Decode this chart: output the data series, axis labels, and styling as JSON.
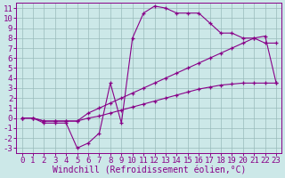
{
  "xlabel": "Windchill (Refroidissement éolien,°C)",
  "xlim": [
    -0.5,
    23.5
  ],
  "ylim": [
    -3.5,
    11.5
  ],
  "xticks": [
    0,
    1,
    2,
    3,
    4,
    5,
    6,
    7,
    8,
    9,
    10,
    11,
    12,
    13,
    14,
    15,
    16,
    17,
    18,
    19,
    20,
    21,
    22,
    23
  ],
  "yticks": [
    -3,
    -2,
    -1,
    0,
    1,
    2,
    3,
    4,
    5,
    6,
    7,
    8,
    9,
    10,
    11
  ],
  "bg_color": "#cce8e8",
  "line_color": "#880088",
  "grid_color": "#99bbbb",
  "line1_x": [
    0,
    1,
    2,
    3,
    4,
    5,
    6,
    7,
    8,
    9,
    10,
    11,
    12,
    13,
    14,
    15,
    16,
    17,
    18,
    19,
    20,
    21,
    22,
    23
  ],
  "line1_y": [
    0,
    0,
    -0.5,
    -0.5,
    -0.5,
    -3.0,
    -2.5,
    -1.5,
    3.5,
    -0.5,
    8.0,
    10.5,
    11.2,
    11.0,
    10.5,
    10.5,
    10.5,
    9.5,
    8.5,
    8.5,
    8.0,
    8.0,
    7.5,
    7.5
  ],
  "line2_x": [
    0,
    1,
    2,
    3,
    4,
    5,
    6,
    7,
    8,
    9,
    10,
    11,
    12,
    13,
    14,
    15,
    16,
    17,
    18,
    19,
    20,
    21,
    22,
    23
  ],
  "line2_y": [
    0,
    0,
    -0.3,
    -0.3,
    -0.3,
    -0.3,
    0.5,
    1.0,
    1.5,
    2.0,
    2.5,
    3.0,
    3.5,
    4.0,
    4.5,
    5.0,
    5.5,
    6.0,
    6.5,
    7.0,
    7.5,
    8.0,
    8.2,
    3.5
  ],
  "line3_x": [
    0,
    1,
    2,
    3,
    4,
    5,
    6,
    7,
    8,
    9,
    10,
    11,
    12,
    13,
    14,
    15,
    16,
    17,
    18,
    19,
    20,
    21,
    22,
    23
  ],
  "line3_y": [
    0,
    0,
    -0.3,
    -0.3,
    -0.3,
    -0.3,
    0.0,
    0.2,
    0.5,
    0.8,
    1.1,
    1.4,
    1.7,
    2.0,
    2.3,
    2.6,
    2.9,
    3.1,
    3.3,
    3.4,
    3.5,
    3.5,
    3.5,
    3.5
  ],
  "font_family": "monospace",
  "tick_fontsize": 6.5,
  "xlabel_fontsize": 7.0
}
